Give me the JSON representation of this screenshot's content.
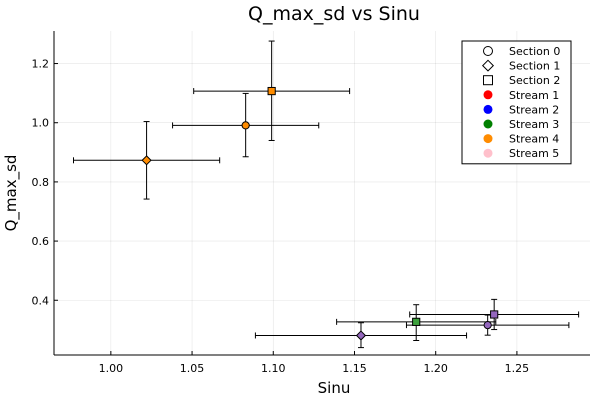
{
  "chart_data": {
    "type": "scatter",
    "title": "Q_max_sd vs Sinu",
    "xlabel": "Sinu",
    "ylabel": "Q_max_sd",
    "xlim": [
      0.965,
      1.295
    ],
    "ylim": [
      0.215,
      1.31
    ],
    "xticks": [
      1.0,
      1.05,
      1.1,
      1.15,
      1.2,
      1.25
    ],
    "xtick_labels": [
      "1.00",
      "1.05",
      "1.10",
      "1.15",
      "1.20",
      "1.25"
    ],
    "yticks": [
      0.4,
      0.6,
      0.8,
      1.0,
      1.2
    ],
    "ytick_labels": [
      "0.4",
      "0.6",
      "0.8",
      "1.0",
      "1.2"
    ],
    "grid": true,
    "legend_position": "top-right",
    "legend": [
      {
        "label": "Section 0",
        "marker": "circle",
        "color": "#ffffff"
      },
      {
        "label": "Section 1",
        "marker": "diamond",
        "color": "#ffffff"
      },
      {
        "label": "Section 2",
        "marker": "square",
        "color": "#ffffff"
      },
      {
        "label": "Stream 1",
        "marker": "dot",
        "color": "#ff0000"
      },
      {
        "label": "Stream 2",
        "marker": "dot",
        "color": "#0000ff"
      },
      {
        "label": "Stream 3",
        "marker": "dot",
        "color": "#008000"
      },
      {
        "label": "Stream 4",
        "marker": "dot",
        "color": "#ff8c00"
      },
      {
        "label": "Stream 5",
        "marker": "dot",
        "color": "#ffc0cb"
      }
    ],
    "points": [
      {
        "x": 1.022,
        "y": 0.873,
        "xerr": 0.045,
        "yerr_low": 0.131,
        "yerr_high": 0.131,
        "marker": "diamond",
        "color": "#ff8c00"
      },
      {
        "x": 1.083,
        "y": 0.991,
        "xerr": 0.045,
        "yerr_low": 0.106,
        "yerr_high": 0.108,
        "marker": "circle",
        "color": "#ff8c00"
      },
      {
        "x": 1.099,
        "y": 1.107,
        "xerr": 0.048,
        "yerr_low": 0.167,
        "yerr_high": 0.169,
        "marker": "square",
        "color": "#ff8c00"
      },
      {
        "x": 1.154,
        "y": 0.281,
        "xerr": 0.065,
        "yerr_low": 0.041,
        "yerr_high": 0.043,
        "marker": "diamond",
        "color": "#9467bd"
      },
      {
        "x": 1.188,
        "y": 0.327,
        "xerr": 0.049,
        "yerr_low": 0.063,
        "yerr_high": 0.058,
        "marker": "square",
        "color": "#3ca03c"
      },
      {
        "x": 1.232,
        "y": 0.316,
        "xerr": 0.05,
        "yerr_low": 0.034,
        "yerr_high": 0.034,
        "marker": "circle",
        "color": "#9467bd"
      },
      {
        "x": 1.236,
        "y": 0.352,
        "xerr": 0.052,
        "yerr_low": 0.051,
        "yerr_high": 0.051,
        "marker": "square",
        "color": "#9467bd"
      }
    ]
  }
}
